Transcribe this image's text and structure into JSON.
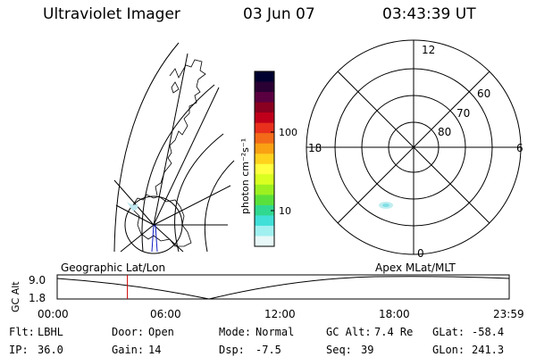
{
  "header": {
    "title": "Ultraviolet Imager",
    "date": "03 Jun 07",
    "time": "03:43:39  UT"
  },
  "colorbar": {
    "unit_label": "photon cm⁻²s⁻¹",
    "ticks": [
      "100",
      "10"
    ],
    "colors": [
      "#000030",
      "#2a0033",
      "#5a0040",
      "#8a0020",
      "#c0001a",
      "#e8301c",
      "#f36a19",
      "#f9a013",
      "#ffd21e",
      "#ffff40",
      "#d8ff20",
      "#9cf020",
      "#5ae03a",
      "#30d890",
      "#40e0d8",
      "#a0f0f0",
      "#e8f8f8"
    ]
  },
  "geo_map": {
    "label": "Geographic Lat/Lon"
  },
  "polar_plot": {
    "label": "Apex  MLat/MLT",
    "hours": {
      "top": "12",
      "left": "18",
      "right": "6",
      "bottom": "0"
    },
    "lats": [
      "60",
      "70",
      "80"
    ]
  },
  "timeline": {
    "ylabel": "GC Alt",
    "ymax": "9.0",
    "ymin": "1.8",
    "xticks": [
      "00:00",
      "06:00",
      "12:00",
      "18:00",
      "23:59"
    ],
    "current_marker_hour": 3.73
  },
  "meta": {
    "filter": {
      "label": "Flt:",
      "value": "LBHL"
    },
    "ip": {
      "label": "IP:",
      "value": "36.0"
    },
    "door": {
      "label": "Door:",
      "value": "Open"
    },
    "gain": {
      "label": "Gain:",
      "value": "14"
    },
    "mode": {
      "label": "Mode:",
      "value": "Normal"
    },
    "dsp": {
      "label": "Dsp:",
      "value": "-7.5"
    },
    "gc_alt": {
      "label": "GC Alt:",
      "value": "7.4 Re"
    },
    "seq": {
      "label": "Seq:",
      "value": "39"
    },
    "glat": {
      "label": "GLat:",
      "value": "-58.4"
    },
    "glon": {
      "label": "GLon:",
      "value": "241.3"
    }
  }
}
